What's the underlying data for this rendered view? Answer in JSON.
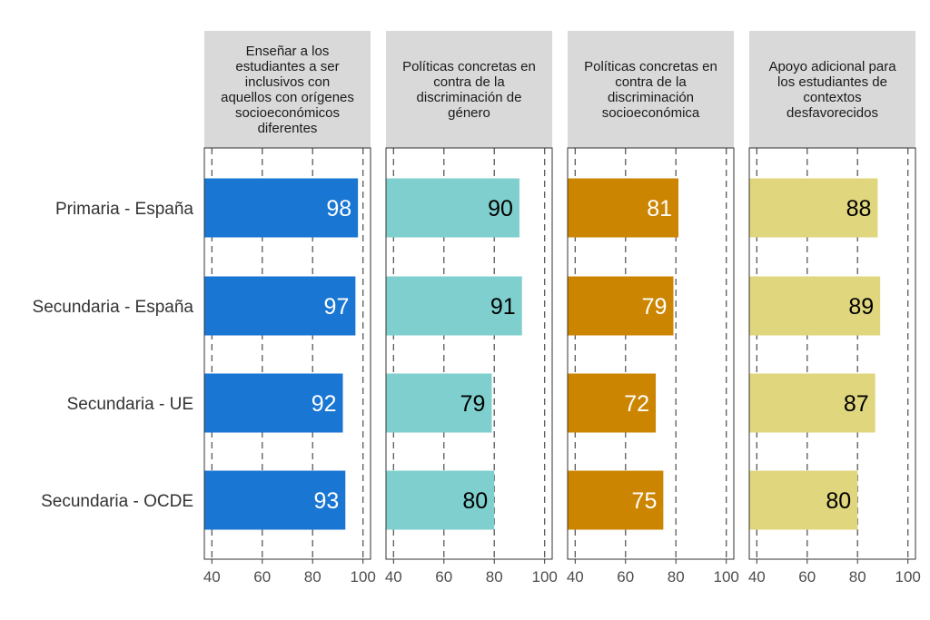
{
  "chart_data": {
    "type": "bar",
    "orientation": "horizontal",
    "faceted": true,
    "categories": [
      "Primaria - España",
      "Secundaria - España",
      "Secundaria - UE",
      "Secundaria - OCDE"
    ],
    "xlim": [
      37,
      103
    ],
    "xticks": [
      40,
      60,
      80,
      100
    ],
    "tick_labels": [
      "40",
      "60",
      "80",
      "100"
    ],
    "grid": "dashed vertical at ticks",
    "panels": [
      {
        "title_lines": [
          "Enseñar a los",
          "estudiantes a ser",
          "inclusivos con",
          "aquellos con orígenes",
          "socioeconómicos",
          "diferentes"
        ],
        "values": [
          98,
          97,
          92,
          93
        ],
        "value_labels": [
          "98",
          "97",
          "92",
          "93"
        ],
        "color": "#1976D2",
        "label_color": "#ffffff"
      },
      {
        "title_lines": [
          "Políticas concretas en",
          "contra de la",
          "discriminación de",
          "género"
        ],
        "values": [
          90,
          91,
          79,
          80
        ],
        "value_labels": [
          "90",
          "91",
          "79",
          "80"
        ],
        "color": "#7ECFCD",
        "label_color": "#000000"
      },
      {
        "title_lines": [
          "Políticas concretas en",
          "contra de la",
          "discriminación",
          "socioeconómica"
        ],
        "values": [
          81,
          79,
          72,
          75
        ],
        "value_labels": [
          "81",
          "79",
          "72",
          "75"
        ],
        "color": "#CC8500",
        "label_color": "#ffffff"
      },
      {
        "title_lines": [
          "Apoyo adicional para",
          "los estudiantes de",
          "contextos",
          "desfavorecidos"
        ],
        "values": [
          88,
          89,
          87,
          80
        ],
        "value_labels": [
          "88",
          "89",
          "87",
          "80"
        ],
        "color": "#E0D67E",
        "label_color": "#000000"
      }
    ]
  }
}
